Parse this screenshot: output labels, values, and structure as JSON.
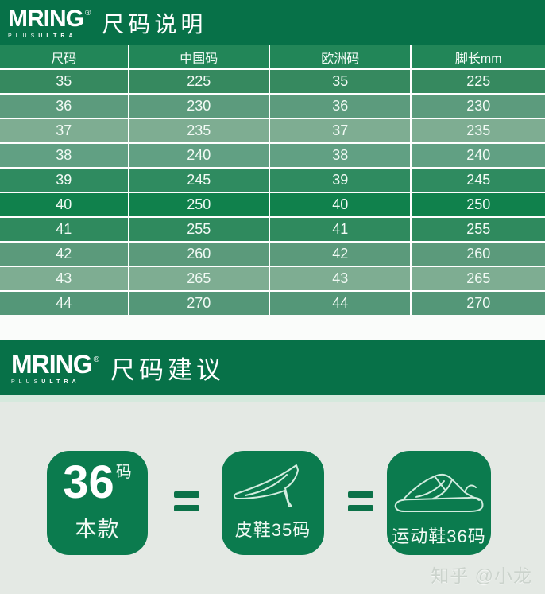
{
  "palette": {
    "banner_green": "#077148",
    "card_green": "#0b7b4e",
    "equals_green": "#0b7248",
    "header_row": "#228658",
    "table_line": "#ffffff",
    "cell_text": "#f2faf5",
    "gap_section": "#fafcfa",
    "mint_strip": "#d5e9dd",
    "bottom_bg": "#e4e9e4",
    "icon_stroke": "#d2ecdf",
    "watermark_color": "#cbd3cc"
  },
  "brand": {
    "name": "MRING",
    "reg": "®",
    "sub_thin": "PLUS",
    "sub_bold": "ULTRA"
  },
  "sections": {
    "size_table_title": "尺码说明",
    "suggestion_title": "尺码建议"
  },
  "size_table": {
    "columns": [
      "尺码",
      "中国码",
      "欧洲码",
      "脚长mm"
    ],
    "rows": [
      {
        "size": "35",
        "china": "225",
        "europe": "35",
        "foot_mm": "225",
        "color": "#36895f"
      },
      {
        "size": "36",
        "china": "230",
        "europe": "36",
        "foot_mm": "230",
        "color": "#5c9b7d"
      },
      {
        "size": "37",
        "china": "235",
        "europe": "37",
        "foot_mm": "235",
        "color": "#7ead92"
      },
      {
        "size": "38",
        "china": "240",
        "europe": "38",
        "foot_mm": "240",
        "color": "#61a083"
      },
      {
        "size": "39",
        "china": "245",
        "europe": "39",
        "foot_mm": "245",
        "color": "#2f8b60"
      },
      {
        "size": "40",
        "china": "250",
        "europe": "40",
        "foot_mm": "250",
        "color": "#10814c"
      },
      {
        "size": "41",
        "china": "255",
        "europe": "41",
        "foot_mm": "255",
        "color": "#2f8a5e"
      },
      {
        "size": "42",
        "china": "260",
        "europe": "42",
        "foot_mm": "260",
        "color": "#5b9a7b"
      },
      {
        "size": "43",
        "china": "265",
        "europe": "43",
        "foot_mm": "265",
        "color": "#7ead92"
      },
      {
        "size": "44",
        "china": "270",
        "europe": "44",
        "foot_mm": "270",
        "color": "#549778"
      }
    ]
  },
  "suggestion": {
    "main_card": {
      "size": "36",
      "unit": "码",
      "label": "本款"
    },
    "equals": "=",
    "leather_card": {
      "icon": "high-heel-icon",
      "label": "皮鞋35码"
    },
    "sport_card": {
      "icon": "sneaker-icon",
      "label": "运动鞋36码"
    }
  },
  "watermark": "知乎 @小龙"
}
